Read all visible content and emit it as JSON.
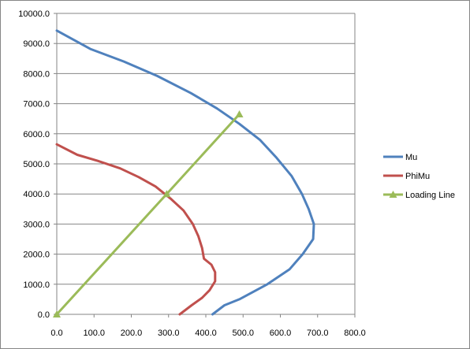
{
  "chart_data": {
    "type": "line",
    "title": "",
    "xlabel": "",
    "ylabel": "",
    "xlim": [
      0,
      800
    ],
    "ylim": [
      0,
      10000
    ],
    "x_ticks": [
      "0.0",
      "100.0",
      "200.0",
      "300.0",
      "400.0",
      "500.0",
      "600.0",
      "700.0",
      "800.0"
    ],
    "y_ticks": [
      "0.0",
      "1000.0",
      "2000.0",
      "3000.0",
      "4000.0",
      "5000.0",
      "6000.0",
      "7000.0",
      "8000.0",
      "9000.0",
      "10000.0"
    ],
    "grid": "horizontal",
    "legend": "right",
    "series": [
      {
        "name": "Mu",
        "color": "#4f81bd",
        "marker": "none",
        "points": [
          [
            0,
            9430
          ],
          [
            90,
            8820
          ],
          [
            180,
            8400
          ],
          [
            270,
            7920
          ],
          [
            360,
            7350
          ],
          [
            430,
            6840
          ],
          [
            490,
            6330
          ],
          [
            545,
            5800
          ],
          [
            590,
            5200
          ],
          [
            630,
            4600
          ],
          [
            658,
            4000
          ],
          [
            676,
            3500
          ],
          [
            690,
            3000
          ],
          [
            688,
            2500
          ],
          [
            660,
            2000
          ],
          [
            625,
            1500
          ],
          [
            565,
            1000
          ],
          [
            490,
            500
          ],
          [
            450,
            300
          ],
          [
            418,
            0
          ]
        ]
      },
      {
        "name": "PhiMu",
        "color": "#c0504d",
        "marker": "none",
        "points": [
          [
            0,
            5650
          ],
          [
            55,
            5300
          ],
          [
            110,
            5100
          ],
          [
            170,
            4850
          ],
          [
            220,
            4560
          ],
          [
            265,
            4250
          ],
          [
            305,
            3850
          ],
          [
            340,
            3450
          ],
          [
            365,
            3000
          ],
          [
            380,
            2600
          ],
          [
            390,
            2200
          ],
          [
            395,
            1850
          ],
          [
            415,
            1650
          ],
          [
            425,
            1400
          ],
          [
            425,
            1100
          ],
          [
            410,
            800
          ],
          [
            390,
            550
          ],
          [
            362,
            300
          ],
          [
            330,
            0
          ]
        ]
      },
      {
        "name": "Loading Line",
        "color": "#9bbb59",
        "marker": "triangle",
        "points": [
          [
            0,
            0
          ],
          [
            295,
            4000
          ],
          [
            490,
            6650
          ]
        ]
      }
    ]
  }
}
